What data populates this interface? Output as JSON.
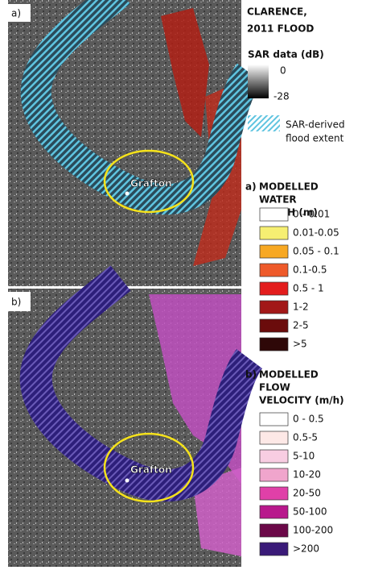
{
  "title_lines": [
    "CLARENCE,",
    "2011 FLOOD"
  ],
  "sar": {
    "title": "SAR data (dB)",
    "max_label": "0",
    "min_label": "-28"
  },
  "flood_extent_lines": [
    "SAR-derived",
    "flood extent"
  ],
  "panels": [
    {
      "label": "a)",
      "place": "Grafton"
    },
    {
      "label": "b)",
      "place": "Grafton"
    }
  ],
  "depth_legend": {
    "prefix": "a)",
    "title_lines": [
      "MODELLED",
      "WATER",
      "DEPTH (m)"
    ],
    "items": [
      {
        "label": "0 - 0.01",
        "color": "#ffffff"
      },
      {
        "label": "0.01-0.05",
        "color": "#f6ef72"
      },
      {
        "label": "0.05 - 0.1",
        "color": "#f7a823"
      },
      {
        "label": "0.1-0.5",
        "color": "#ee5a2a"
      },
      {
        "label": "0.5 - 1",
        "color": "#e31c1c"
      },
      {
        "label": "1-2",
        "color": "#a21818"
      },
      {
        "label": "2-5",
        "color": "#6b0c0c"
      },
      {
        "label": ">5",
        "color": "#2e0808"
      }
    ]
  },
  "velocity_legend": {
    "prefix": "b)",
    "title_lines": [
      "MODELLED",
      "FLOW",
      "VELOCITY (m/h)"
    ],
    "items": [
      {
        "label": "0 - 0.5",
        "color": "#ffffff"
      },
      {
        "label": "0.5-5",
        "color": "#fde8e6"
      },
      {
        "label": "5-10",
        "color": "#f8cde2"
      },
      {
        "label": "10-20",
        "color": "#f0a5cc"
      },
      {
        "label": "20-50",
        "color": "#e040a8"
      },
      {
        "label": "50-100",
        "color": "#b8188c"
      },
      {
        "label": "100-200",
        "color": "#6b0848"
      },
      {
        "label": ">200",
        "color": "#3a1a78"
      }
    ]
  }
}
